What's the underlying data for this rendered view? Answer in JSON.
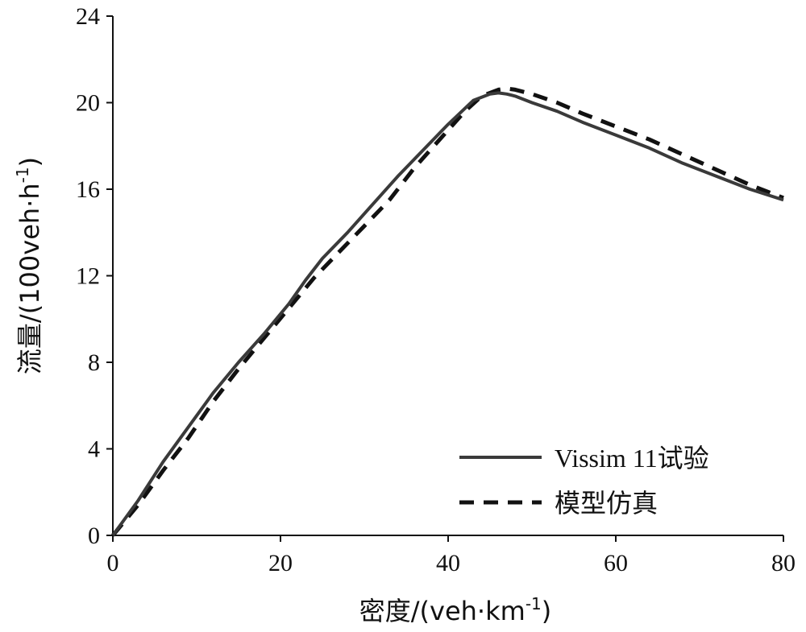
{
  "chart_data": {
    "type": "line",
    "xlabel": "密度/(veh·km",
    "xlabel_sup": "-1",
    "xlabel_close": ")",
    "ylabel": "流量/(100veh·h",
    "ylabel_sup": "-1",
    "ylabel_close": ")",
    "xlim": [
      0,
      80
    ],
    "ylim": [
      0,
      24
    ],
    "xticks": [
      0,
      20,
      40,
      60,
      80
    ],
    "yticks": [
      0,
      4,
      8,
      12,
      16,
      20,
      24
    ],
    "grid": false,
    "legend_position": "bottom-right",
    "series": [
      {
        "name": "Vissim 11试验",
        "style": "solid",
        "color": "#3a3a3a",
        "x": [
          0,
          3,
          6,
          9,
          12,
          15,
          18,
          21,
          23,
          25,
          28,
          31,
          34,
          37,
          40,
          43,
          45,
          46,
          47,
          48,
          50,
          53,
          56,
          60,
          64,
          68,
          72,
          76,
          80
        ],
        "y": [
          0,
          1.6,
          3.4,
          5.0,
          6.6,
          8.0,
          9.3,
          10.7,
          11.8,
          12.8,
          14.0,
          15.3,
          16.6,
          17.8,
          19.0,
          20.1,
          20.4,
          20.45,
          20.4,
          20.3,
          20.0,
          19.6,
          19.1,
          18.5,
          17.9,
          17.2,
          16.6,
          16.0,
          15.5
        ]
      },
      {
        "name": "模型仿真",
        "style": "dashed",
        "color": "#111111",
        "x": [
          0,
          3,
          6,
          9,
          12,
          15,
          18,
          21,
          24,
          27,
          30,
          33,
          36,
          39,
          42,
          44,
          46,
          47,
          48,
          50,
          53,
          56,
          60,
          64,
          68,
          72,
          76,
          80
        ],
        "y": [
          0,
          1.4,
          3.0,
          4.5,
          6.2,
          7.7,
          9.1,
          10.5,
          11.9,
          13.1,
          14.3,
          15.5,
          17.0,
          18.3,
          19.6,
          20.3,
          20.6,
          20.65,
          20.6,
          20.4,
          20.0,
          19.5,
          18.9,
          18.3,
          17.6,
          16.9,
          16.2,
          15.6
        ]
      }
    ]
  }
}
